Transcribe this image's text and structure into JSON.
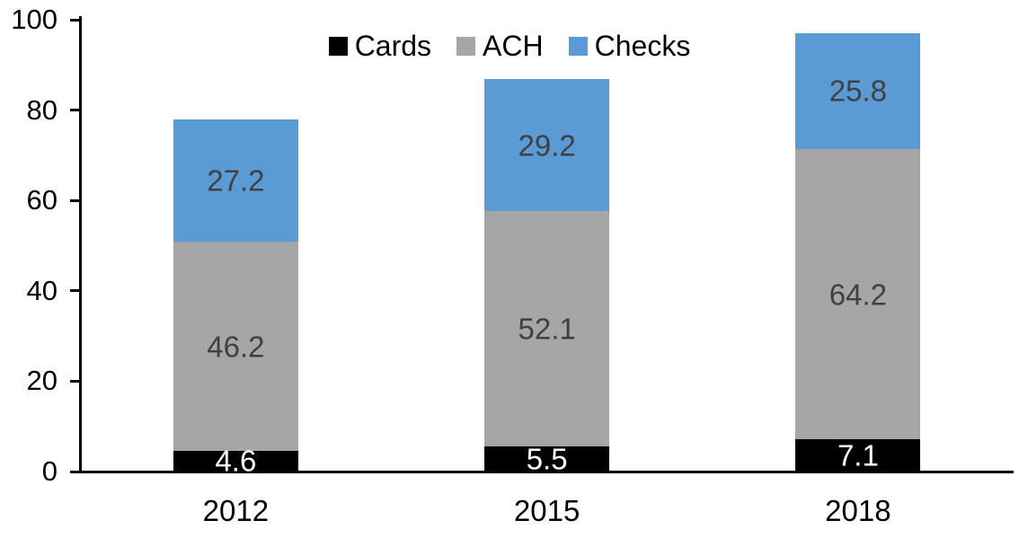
{
  "chart_data": {
    "type": "bar",
    "stacked": true,
    "title": "",
    "categories": [
      "2012",
      "2015",
      "2018"
    ],
    "series": [
      {
        "name": "Cards",
        "color": "#000000",
        "label_color": "#ffffff",
        "values": [
          4.6,
          5.5,
          7.1
        ]
      },
      {
        "name": "ACH",
        "color": "#a6a6a6",
        "label_color": "#404040",
        "values": [
          46.2,
          52.1,
          64.2
        ]
      },
      {
        "name": "Checks",
        "color": "#5b9bd5",
        "label_color": "#404040",
        "values": [
          27.2,
          29.2,
          25.8
        ]
      }
    ],
    "data_labels_shown": true,
    "y_axis": {
      "min": 0,
      "max": 100,
      "tick_interval": 20,
      "tick_labels": [
        "0",
        "20",
        "40",
        "60",
        "80",
        "100"
      ]
    },
    "legend": {
      "position": "top-center",
      "entries": [
        "Cards",
        "ACH",
        "Checks"
      ]
    },
    "grid": false,
    "axis_color": "#000000",
    "background_color": "#ffffff"
  }
}
